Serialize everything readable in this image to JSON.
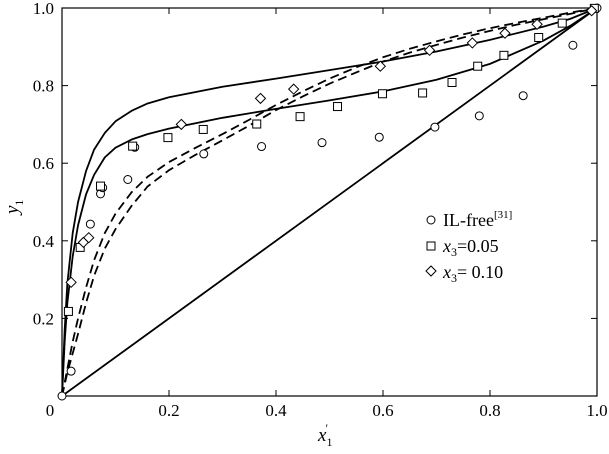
{
  "chart_data": {
    "type": "scatter",
    "xlabel": {
      "main": "x",
      "sub": "1",
      "sup": "′"
    },
    "ylabel": {
      "main": "y",
      "sub": "1"
    },
    "xlim": [
      0,
      1
    ],
    "ylim": [
      0,
      1
    ],
    "x_ticks": [
      {
        "value": 0,
        "label": "0"
      },
      {
        "value": 0.2,
        "label": "0.2"
      },
      {
        "value": 0.4,
        "label": "0.4"
      },
      {
        "value": 0.6,
        "label": "0.6"
      },
      {
        "value": 0.8,
        "label": "0.8"
      },
      {
        "value": 1.0,
        "label": "1.0"
      }
    ],
    "y_ticks": [
      {
        "value": 0.2,
        "label": "0.2"
      },
      {
        "value": 0.4,
        "label": "0.4"
      },
      {
        "value": 0.6,
        "label": "0.6"
      },
      {
        "value": 0.8,
        "label": "0.8"
      },
      {
        "value": 1.0,
        "label": "1.0"
      }
    ],
    "origin_label": "0",
    "grid": false,
    "legend_position": "right",
    "series": [
      {
        "name": "IL-free[31]",
        "legend": {
          "text": "IL-free",
          "sup": "[31]"
        },
        "marker": "circle",
        "points": [
          [
            0.0,
            0.0
          ],
          [
            0.017,
            0.064
          ],
          [
            0.053,
            0.443
          ],
          [
            0.072,
            0.521
          ],
          [
            0.076,
            0.537
          ],
          [
            0.123,
            0.558
          ],
          [
            0.136,
            0.641
          ],
          [
            0.265,
            0.624
          ],
          [
            0.373,
            0.643
          ],
          [
            0.486,
            0.653
          ],
          [
            0.593,
            0.667
          ],
          [
            0.697,
            0.693
          ],
          [
            0.78,
            0.722
          ],
          [
            0.862,
            0.774
          ],
          [
            0.955,
            0.904
          ],
          [
            1.0,
            1.0
          ]
        ]
      },
      {
        "name": "x3=0.05",
        "legend": {
          "var": "x",
          "sub": "3",
          "text": "=0.05"
        },
        "marker": "square",
        "points": [
          [
            0.012,
            0.218
          ],
          [
            0.034,
            0.383
          ],
          [
            0.072,
            0.541
          ],
          [
            0.132,
            0.644
          ],
          [
            0.198,
            0.666
          ],
          [
            0.264,
            0.687
          ],
          [
            0.364,
            0.701
          ],
          [
            0.445,
            0.72
          ],
          [
            0.515,
            0.746
          ],
          [
            0.599,
            0.779
          ],
          [
            0.674,
            0.781
          ],
          [
            0.729,
            0.808
          ],
          [
            0.777,
            0.85
          ],
          [
            0.826,
            0.878
          ],
          [
            0.891,
            0.924
          ],
          [
            0.935,
            0.961
          ],
          [
            0.995,
            0.999
          ]
        ]
      },
      {
        "name": "x3=0.10",
        "legend": {
          "var": "x",
          "sub": "3",
          "text": "= 0.10"
        },
        "marker": "diamond",
        "points": [
          [
            0.017,
            0.293
          ],
          [
            0.04,
            0.396
          ],
          [
            0.05,
            0.408
          ],
          [
            0.223,
            0.7
          ],
          [
            0.371,
            0.767
          ],
          [
            0.433,
            0.791
          ],
          [
            0.595,
            0.85
          ],
          [
            0.687,
            0.891
          ],
          [
            0.767,
            0.91
          ],
          [
            0.828,
            0.935
          ],
          [
            0.888,
            0.958
          ],
          [
            0.99,
            0.993
          ]
        ]
      }
    ],
    "curves": [
      {
        "style": "solid",
        "points": [
          [
            0.0,
            0.0
          ],
          [
            0.005,
            0.14
          ],
          [
            0.01,
            0.24
          ],
          [
            0.02,
            0.36
          ],
          [
            0.03,
            0.44
          ],
          [
            0.045,
            0.52
          ],
          [
            0.06,
            0.57
          ],
          [
            0.08,
            0.615
          ],
          [
            0.1,
            0.64
          ],
          [
            0.13,
            0.661
          ],
          [
            0.16,
            0.675
          ],
          [
            0.2,
            0.689
          ],
          [
            0.3,
            0.717
          ],
          [
            0.4,
            0.74
          ],
          [
            0.5,
            0.762
          ],
          [
            0.6,
            0.785
          ],
          [
            0.7,
            0.815
          ],
          [
            0.8,
            0.856
          ],
          [
            0.9,
            0.916
          ],
          [
            0.95,
            0.954
          ],
          [
            1.0,
            1.0
          ]
        ]
      },
      {
        "style": "solid",
        "points": [
          [
            0.0,
            0.0
          ],
          [
            0.005,
            0.17
          ],
          [
            0.01,
            0.29
          ],
          [
            0.02,
            0.42
          ],
          [
            0.03,
            0.5
          ],
          [
            0.045,
            0.58
          ],
          [
            0.06,
            0.635
          ],
          [
            0.08,
            0.678
          ],
          [
            0.1,
            0.708
          ],
          [
            0.13,
            0.735
          ],
          [
            0.16,
            0.754
          ],
          [
            0.2,
            0.77
          ],
          [
            0.3,
            0.797
          ],
          [
            0.4,
            0.818
          ],
          [
            0.5,
            0.84
          ],
          [
            0.6,
            0.862
          ],
          [
            0.7,
            0.888
          ],
          [
            0.8,
            0.918
          ],
          [
            0.9,
            0.952
          ],
          [
            0.95,
            0.972
          ],
          [
            1.0,
            1.0
          ]
        ]
      },
      {
        "style": "dashed",
        "points": [
          [
            0.0,
            0.0
          ],
          [
            0.01,
            0.06
          ],
          [
            0.02,
            0.11
          ],
          [
            0.03,
            0.16
          ],
          [
            0.045,
            0.24
          ],
          [
            0.06,
            0.31
          ],
          [
            0.08,
            0.38
          ],
          [
            0.1,
            0.43
          ],
          [
            0.13,
            0.49
          ],
          [
            0.16,
            0.54
          ],
          [
            0.2,
            0.582
          ],
          [
            0.25,
            0.622
          ],
          [
            0.3,
            0.659
          ],
          [
            0.35,
            0.697
          ],
          [
            0.4,
            0.737
          ],
          [
            0.45,
            0.772
          ],
          [
            0.5,
            0.805
          ],
          [
            0.55,
            0.834
          ],
          [
            0.6,
            0.862
          ],
          [
            0.65,
            0.885
          ],
          [
            0.7,
            0.905
          ],
          [
            0.75,
            0.924
          ],
          [
            0.8,
            0.941
          ],
          [
            0.85,
            0.957
          ],
          [
            0.9,
            0.971
          ],
          [
            0.95,
            0.985
          ],
          [
            1.0,
            1.0
          ]
        ]
      },
      {
        "style": "dashed",
        "points": [
          [
            0.0,
            0.0
          ],
          [
            0.01,
            0.07
          ],
          [
            0.02,
            0.14
          ],
          [
            0.03,
            0.2
          ],
          [
            0.045,
            0.28
          ],
          [
            0.06,
            0.35
          ],
          [
            0.08,
            0.42
          ],
          [
            0.1,
            0.47
          ],
          [
            0.13,
            0.525
          ],
          [
            0.16,
            0.565
          ],
          [
            0.2,
            0.603
          ],
          [
            0.25,
            0.64
          ],
          [
            0.3,
            0.675
          ],
          [
            0.35,
            0.712
          ],
          [
            0.4,
            0.75
          ],
          [
            0.45,
            0.785
          ],
          [
            0.5,
            0.818
          ],
          [
            0.55,
            0.847
          ],
          [
            0.6,
            0.873
          ],
          [
            0.65,
            0.895
          ],
          [
            0.7,
            0.914
          ],
          [
            0.75,
            0.932
          ],
          [
            0.8,
            0.948
          ],
          [
            0.85,
            0.962
          ],
          [
            0.9,
            0.975
          ],
          [
            0.95,
            0.988
          ],
          [
            1.0,
            1.0
          ]
        ]
      },
      {
        "style": "solid",
        "points": [
          [
            0.0,
            0.0
          ],
          [
            1.0,
            1.0
          ]
        ]
      }
    ]
  }
}
